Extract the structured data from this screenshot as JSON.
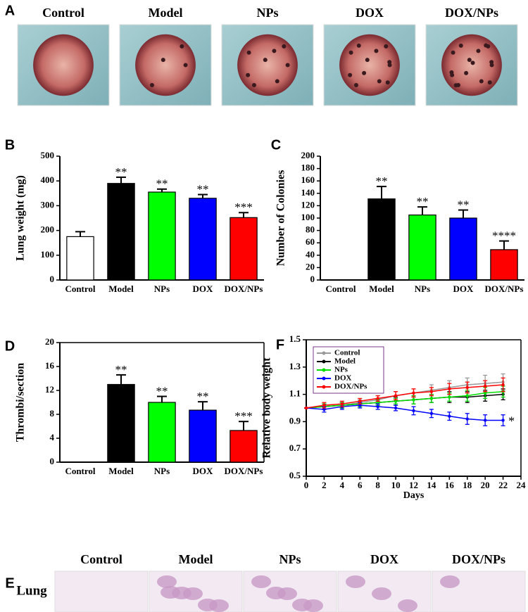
{
  "figure": {
    "photo_panels": [
      {
        "panel": "A",
        "labels": [
          "Control",
          "Model",
          "NPs",
          "DOX",
          "DOX/NPs"
        ]
      },
      {
        "panel": "E",
        "row_label": "Lung",
        "labels": [
          "Control",
          "Model",
          "NPs",
          "DOX",
          "DOX/NPs"
        ]
      }
    ]
  },
  "chart_data": [
    {
      "type": "bar",
      "panel": "B",
      "ylabel": "Lung weight (mg)",
      "categories": [
        "Control",
        "Model",
        "NPs",
        "DOX",
        "DOX/NPs"
      ],
      "values": [
        175,
        390,
        355,
        330,
        252
      ],
      "errors": [
        20,
        25,
        12,
        15,
        20
      ],
      "colors": [
        "#ffffff",
        "#000000",
        "#00ff00",
        "#0000ff",
        "#ff0000"
      ],
      "annotations": [
        null,
        "**",
        "**",
        "**",
        "***"
      ],
      "ylim": [
        0,
        500
      ],
      "yticks": [
        0,
        100,
        200,
        300,
        400,
        500
      ]
    },
    {
      "type": "bar",
      "panel": "C",
      "ylabel": "Number of Colonies",
      "categories": [
        "Control",
        "Model",
        "NPs",
        "DOX",
        "DOX/NPs"
      ],
      "values": [
        0,
        131,
        105,
        100,
        49
      ],
      "errors": [
        0,
        20,
        13,
        13,
        14
      ],
      "colors": [
        "#ffffff",
        "#000000",
        "#00ff00",
        "#0000ff",
        "#ff0000"
      ],
      "annotations": [
        null,
        "**",
        "**",
        "**",
        "****"
      ],
      "ylim": [
        0,
        200
      ],
      "yticks": [
        0,
        20,
        40,
        60,
        80,
        100,
        120,
        140,
        160,
        180,
        200
      ]
    },
    {
      "type": "bar",
      "panel": "D",
      "ylabel": "Thrombi/section",
      "categories": [
        "Control",
        "Model",
        "NPs",
        "DOX",
        "DOX/NPs"
      ],
      "values": [
        0,
        13,
        10,
        8.7,
        5.3
      ],
      "errors": [
        0,
        1.6,
        1,
        1.4,
        1.5
      ],
      "colors": [
        "#ffffff",
        "#000000",
        "#00ff00",
        "#0000ff",
        "#ff0000"
      ],
      "annotations": [
        null,
        "**",
        "**",
        "**",
        "***"
      ],
      "ylim": [
        0,
        20
      ],
      "yticks": [
        0,
        4,
        8,
        12,
        16,
        20
      ]
    },
    {
      "type": "line",
      "panel": "F",
      "ylabel": "Relative body weight",
      "xlabel": "Days",
      "x": [
        0,
        2,
        4,
        6,
        8,
        10,
        12,
        14,
        16,
        18,
        20,
        22
      ],
      "series": [
        {
          "name": "Control",
          "color": "#999999",
          "values": [
            1.0,
            1.01,
            1.02,
            1.04,
            1.06,
            1.09,
            1.11,
            1.13,
            1.15,
            1.17,
            1.18,
            1.19
          ],
          "errors": [
            0,
            0.02,
            0.02,
            0.02,
            0.03,
            0.03,
            0.03,
            0.04,
            0.05,
            0.05,
            0.06,
            0.06
          ]
        },
        {
          "name": "Model",
          "color": "#000000",
          "values": [
            1.0,
            1.01,
            1.02,
            1.03,
            1.04,
            1.05,
            1.06,
            1.07,
            1.08,
            1.08,
            1.09,
            1.1
          ],
          "errors": [
            0,
            0.02,
            0.02,
            0.02,
            0.02,
            0.03,
            0.03,
            0.03,
            0.04,
            0.04,
            0.04,
            0.04
          ]
        },
        {
          "name": "NPs",
          "color": "#00dd00",
          "values": [
            1.0,
            1.01,
            1.02,
            1.03,
            1.04,
            1.05,
            1.06,
            1.07,
            1.08,
            1.09,
            1.11,
            1.12
          ],
          "errors": [
            0,
            0.02,
            0.02,
            0.02,
            0.02,
            0.02,
            0.03,
            0.03,
            0.03,
            0.04,
            0.04,
            0.04
          ]
        },
        {
          "name": "DOX",
          "color": "#0000ff",
          "values": [
            1.0,
            0.99,
            1.01,
            1.02,
            1.01,
            1.0,
            0.98,
            0.96,
            0.94,
            0.92,
            0.91,
            0.91
          ],
          "errors": [
            0,
            0.02,
            0.02,
            0.02,
            0.02,
            0.02,
            0.03,
            0.03,
            0.03,
            0.04,
            0.04,
            0.04
          ]
        },
        {
          "name": "DOX/NPs",
          "color": "#ff0000",
          "values": [
            1.0,
            1.02,
            1.03,
            1.05,
            1.07,
            1.09,
            1.11,
            1.12,
            1.14,
            1.15,
            1.16,
            1.17
          ],
          "errors": [
            0,
            0.02,
            0.02,
            0.02,
            0.02,
            0.03,
            0.03,
            0.03,
            0.04,
            0.04,
            0.04,
            0.05
          ]
        }
      ],
      "annotations": [
        {
          "text": "*",
          "series": 3
        }
      ],
      "xlim": [
        0,
        24
      ],
      "xticks": [
        0,
        2,
        4,
        6,
        8,
        10,
        12,
        14,
        16,
        18,
        20,
        22,
        24
      ],
      "ylim": [
        0.5,
        1.5
      ],
      "yticks": [
        0.5,
        0.7,
        0.9,
        1.1,
        1.3,
        1.5
      ],
      "legend": "upper left"
    }
  ]
}
